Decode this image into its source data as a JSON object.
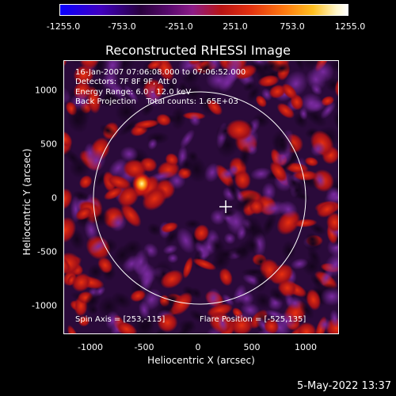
{
  "colorbar": {
    "ticks": [
      "-1255.0",
      "-753.0",
      "-251.0",
      "251.0",
      "753.0",
      "1255.0"
    ]
  },
  "title": "Reconstructed RHESSI Image",
  "annotations": {
    "line1": "16-Jan-2007 07:06:08.000 to 07:06:52.000",
    "line2": "Detectors: 7F 8F 9F, Att 0",
    "line3": "Energy Range: 6.0 - 12.0 keV",
    "line4": "Back Projection    Total counts: 1.65E+03",
    "spin_axis": "Spin Axis = [253,-115]",
    "flare_position": "Flare Position = [-525,135]"
  },
  "axes": {
    "xlabel": "Heliocentric X (arcsec)",
    "ylabel": "Heliocentric Y (arcsec)",
    "xticks": [
      "-1000",
      "-500",
      "0",
      "500",
      "1000"
    ],
    "yticks": [
      "1000",
      "500",
      "0",
      "-500",
      "-1000"
    ]
  },
  "footer": {
    "date": "5-May-2022 13:37"
  },
  "colors": {
    "background": "#000000",
    "foreground": "#ffffff"
  }
}
